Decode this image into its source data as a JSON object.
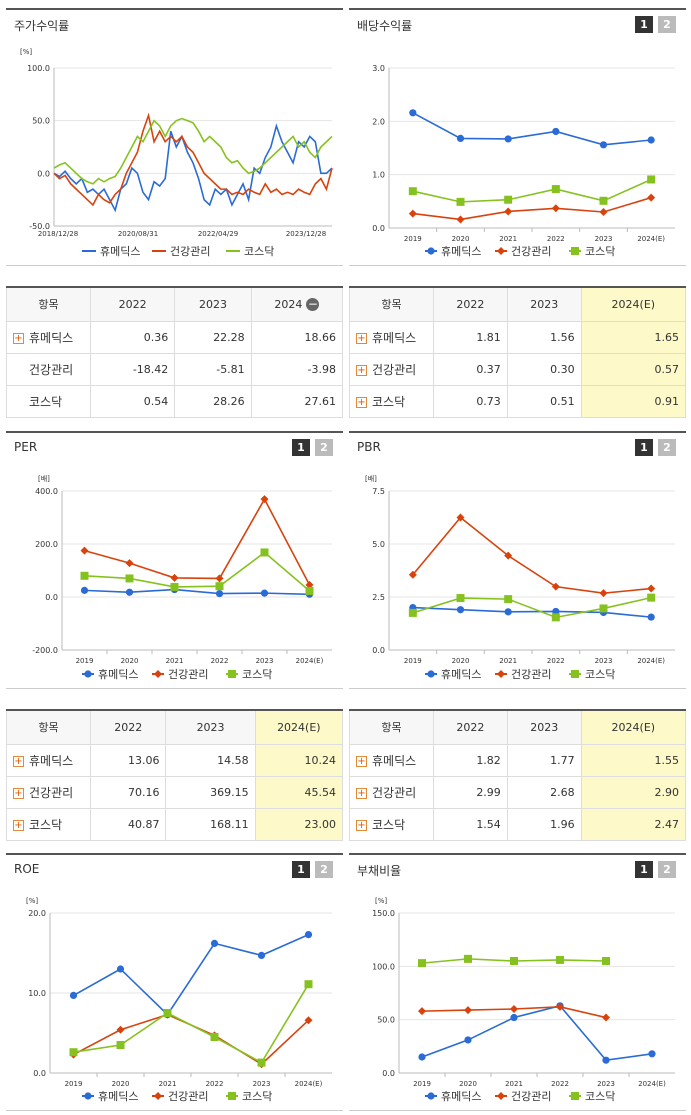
{
  "colors": {
    "humedix": "#2a6bd6",
    "health": "#d8430d",
    "kosdaq": "#86c21f"
  },
  "legend": [
    "휴메딕스",
    "건강관리",
    "코스닥"
  ],
  "stock": {
    "title": "주가수익률",
    "unit": "[%]",
    "yticks": [
      "100.0",
      "50.0",
      "0.0",
      "-50.0"
    ],
    "xticks": [
      "2018/12/28",
      "2020/08/31",
      "2022/04/29",
      "2023/12/28"
    ],
    "chart_data": {
      "type": "line",
      "ylim": [
        -50,
        100
      ],
      "x_range": [
        0,
        100
      ],
      "series": [
        {
          "name": "휴메딕스",
          "x": [
            0,
            2,
            4,
            6,
            8,
            10,
            12,
            14,
            16,
            18,
            20,
            22,
            24,
            26,
            28,
            30,
            32,
            34,
            36,
            38,
            40,
            42,
            44,
            46,
            48,
            50,
            52,
            54,
            56,
            58,
            60,
            62,
            64,
            66,
            68,
            70,
            72,
            74,
            76,
            78,
            80,
            82,
            84,
            86,
            88,
            90,
            92,
            94,
            96,
            98,
            100
          ],
          "y": [
            0,
            -3,
            2,
            -5,
            -10,
            -5,
            -18,
            -15,
            -20,
            -15,
            -25,
            -35,
            -15,
            -10,
            5,
            0,
            -18,
            -25,
            -8,
            -12,
            -5,
            40,
            25,
            35,
            20,
            10,
            -5,
            -25,
            -30,
            -15,
            -20,
            -15,
            -30,
            -20,
            -10,
            -25,
            5,
            0,
            15,
            25,
            45,
            30,
            20,
            10,
            30,
            25,
            35,
            30,
            0,
            0,
            5
          ]
        },
        {
          "name": "건강관리",
          "x": [
            0,
            2,
            4,
            6,
            8,
            10,
            12,
            14,
            16,
            18,
            20,
            22,
            24,
            26,
            28,
            30,
            32,
            34,
            36,
            38,
            40,
            42,
            44,
            46,
            48,
            50,
            52,
            54,
            56,
            58,
            60,
            62,
            64,
            66,
            68,
            70,
            72,
            74,
            76,
            78,
            80,
            82,
            84,
            86,
            88,
            90,
            92,
            94,
            96,
            98,
            100
          ],
          "y": [
            0,
            -5,
            -2,
            -10,
            -15,
            -20,
            -25,
            -30,
            -20,
            -25,
            -28,
            -20,
            -15,
            0,
            10,
            20,
            40,
            55,
            30,
            40,
            30,
            35,
            30,
            35,
            25,
            20,
            10,
            0,
            -5,
            -10,
            -15,
            -15,
            -20,
            -18,
            -20,
            -15,
            -18,
            -20,
            -10,
            -18,
            -15,
            -20,
            -18,
            -20,
            -15,
            -18,
            -20,
            -10,
            -5,
            -15,
            5
          ]
        },
        {
          "name": "코스닥",
          "x": [
            0,
            2,
            4,
            6,
            8,
            10,
            12,
            14,
            16,
            18,
            20,
            22,
            24,
            26,
            28,
            30,
            32,
            34,
            36,
            38,
            40,
            42,
            44,
            46,
            48,
            50,
            52,
            54,
            56,
            58,
            60,
            62,
            64,
            66,
            68,
            70,
            72,
            74,
            76,
            78,
            80,
            82,
            84,
            86,
            88,
            90,
            92,
            94,
            96,
            98,
            100
          ],
          "y": [
            5,
            8,
            10,
            5,
            0,
            -5,
            -8,
            -10,
            -5,
            -8,
            -5,
            -3,
            5,
            15,
            25,
            35,
            30,
            40,
            50,
            45,
            35,
            45,
            50,
            52,
            50,
            48,
            40,
            30,
            35,
            30,
            25,
            15,
            10,
            12,
            5,
            0,
            2,
            5,
            10,
            15,
            20,
            25,
            30,
            35,
            25,
            30,
            20,
            15,
            25,
            30,
            35
          ]
        }
      ]
    }
  },
  "div": {
    "title": "배당수익률",
    "btn1": "1",
    "btn2": "2",
    "yticks": [
      "3.0",
      "2.0",
      "1.0",
      "0.0"
    ],
    "chart_data": {
      "type": "line",
      "categories": [
        "2019",
        "2020",
        "2021",
        "2022",
        "2023",
        "2024(E)"
      ],
      "ylim": [
        0,
        3
      ],
      "series": [
        {
          "name": "휴메딕스",
          "values": [
            2.16,
            1.68,
            1.67,
            1.81,
            1.56,
            1.65
          ]
        },
        {
          "name": "건강관리",
          "values": [
            0.27,
            0.16,
            0.31,
            0.37,
            0.3,
            0.57
          ]
        },
        {
          "name": "코스닥",
          "values": [
            0.69,
            0.49,
            0.53,
            0.73,
            0.51,
            0.91
          ]
        }
      ]
    }
  },
  "stock_tbl": {
    "head": [
      "항목",
      "2022",
      "2023",
      "2024"
    ],
    "rows": [
      [
        "휴메딕스",
        "0.36",
        "22.28",
        "18.66"
      ],
      [
        "건강관리",
        "-18.42",
        "-5.81",
        "-3.98"
      ],
      [
        "코스닥",
        "0.54",
        "28.26",
        "27.61"
      ]
    ]
  },
  "div_tbl": {
    "head": [
      "항목",
      "2022",
      "2023",
      "2024(E)"
    ],
    "rows": [
      [
        "휴메딕스",
        "1.81",
        "1.56",
        "1.65"
      ],
      [
        "건강관리",
        "0.37",
        "0.30",
        "0.57"
      ],
      [
        "코스닥",
        "0.73",
        "0.51",
        "0.91"
      ]
    ]
  },
  "per": {
    "title": "PER",
    "unit": "[배]",
    "btn1": "1",
    "btn2": "2",
    "yticks": [
      "400.0",
      "200.0",
      "0.0",
      "-200.0"
    ],
    "chart_data": {
      "type": "line",
      "categories": [
        "2019",
        "2020",
        "2021",
        "2022",
        "2023",
        "2024(E)"
      ],
      "ylim": [
        -200,
        400
      ],
      "series": [
        {
          "name": "휴메딕스",
          "values": [
            25,
            18,
            28,
            13.06,
            14.58,
            10.24
          ]
        },
        {
          "name": "건강관리",
          "values": [
            175,
            128,
            72,
            70.16,
            369.15,
            45.54
          ]
        },
        {
          "name": "코스닥",
          "values": [
            80,
            70,
            38,
            40.87,
            168.11,
            23.0
          ]
        }
      ]
    }
  },
  "pbr": {
    "title": "PBR",
    "unit": "[배]",
    "btn1": "1",
    "btn2": "2",
    "yticks": [
      "7.5",
      "5.0",
      "2.5",
      "0.0"
    ],
    "chart_data": {
      "type": "line",
      "categories": [
        "2019",
        "2020",
        "2021",
        "2022",
        "2023",
        "2024(E)"
      ],
      "ylim": [
        0,
        7.5
      ],
      "series": [
        {
          "name": "휴메딕스",
          "values": [
            2.0,
            1.9,
            1.8,
            1.82,
            1.77,
            1.55
          ]
        },
        {
          "name": "건강관리",
          "values": [
            3.55,
            6.25,
            4.45,
            2.99,
            2.68,
            2.9
          ]
        },
        {
          "name": "코스닥",
          "values": [
            1.75,
            2.45,
            2.4,
            1.54,
            1.96,
            2.47
          ]
        }
      ]
    }
  },
  "per_tbl": {
    "head": [
      "항목",
      "2022",
      "2023",
      "2024(E)"
    ],
    "rows": [
      [
        "휴메딕스",
        "13.06",
        "14.58",
        "10.24"
      ],
      [
        "건강관리",
        "70.16",
        "369.15",
        "45.54"
      ],
      [
        "코스닥",
        "40.87",
        "168.11",
        "23.00"
      ]
    ]
  },
  "pbr_tbl": {
    "head": [
      "항목",
      "2022",
      "2023",
      "2024(E)"
    ],
    "rows": [
      [
        "휴메딕스",
        "1.82",
        "1.77",
        "1.55"
      ],
      [
        "건강관리",
        "2.99",
        "2.68",
        "2.90"
      ],
      [
        "코스닥",
        "1.54",
        "1.96",
        "2.47"
      ]
    ]
  },
  "roe": {
    "title": "ROE",
    "unit": "[%]",
    "btn1": "1",
    "btn2": "2",
    "yticks": [
      "20.0",
      "10.0",
      "0.0"
    ],
    "chart_data": {
      "type": "line",
      "categories": [
        "2019",
        "2020",
        "2021",
        "2022",
        "2023",
        "2024(E)"
      ],
      "ylim": [
        0,
        20
      ],
      "series": [
        {
          "name": "휴메딕스",
          "values": [
            9.7,
            13.0,
            7.3,
            16.2,
            14.7,
            17.3
          ]
        },
        {
          "name": "건강관리",
          "values": [
            2.3,
            5.4,
            7.3,
            4.7,
            1.1,
            6.6
          ]
        },
        {
          "name": "코스닥",
          "values": [
            2.6,
            3.5,
            7.5,
            4.5,
            1.3,
            11.1
          ]
        }
      ]
    }
  },
  "debt": {
    "title": "부채비율",
    "unit": "[%]",
    "btn1": "1",
    "btn2": "2",
    "yticks": [
      "150.0",
      "100.0",
      "50.0",
      "0.0"
    ],
    "chart_data": {
      "type": "line",
      "categories": [
        "2019",
        "2020",
        "2021",
        "2022",
        "2023",
        "2024(E)"
      ],
      "ylim": [
        0,
        150
      ],
      "series": [
        {
          "name": "휴메딕스",
          "values": [
            15,
            31,
            52,
            63,
            12,
            18
          ]
        },
        {
          "name": "건강관리",
          "values": [
            58,
            59,
            60,
            62,
            52,
            null
          ]
        },
        {
          "name": "코스닥",
          "values": [
            103,
            107,
            105,
            106,
            105,
            null
          ]
        }
      ]
    }
  }
}
